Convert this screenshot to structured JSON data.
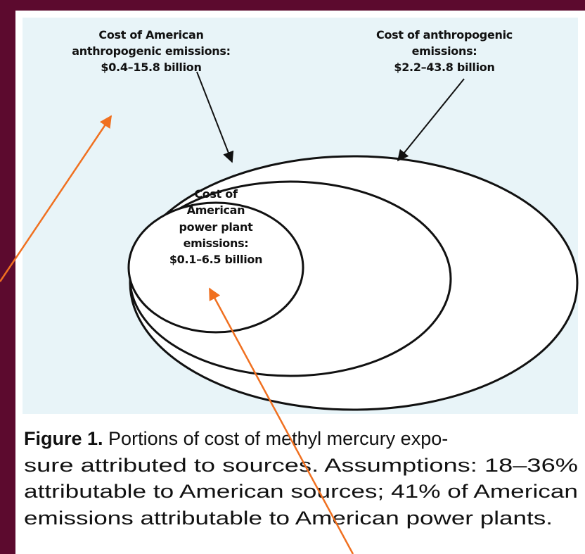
{
  "labels": {
    "american_anthropogenic": [
      "Cost of American",
      "anthropogenic emissions:",
      "$0.4–15.8 billion"
    ],
    "anthropogenic": [
      "Cost of anthropogenic",
      "emissions:",
      "$2.2–43.8 billion"
    ],
    "power_plant": [
      "Cost of",
      "American",
      "power plant",
      "emissions:",
      "$0.1–6.5 billion"
    ]
  },
  "caption": {
    "figure": "Figure 1.",
    "lines": [
      "Portions of cost of methyl mercury expo-",
      "sure attributed to sources. Assumptions: 18–36%",
      "attributable to American sources; 41% of American",
      "emissions attributable to American power plants."
    ]
  }
}
